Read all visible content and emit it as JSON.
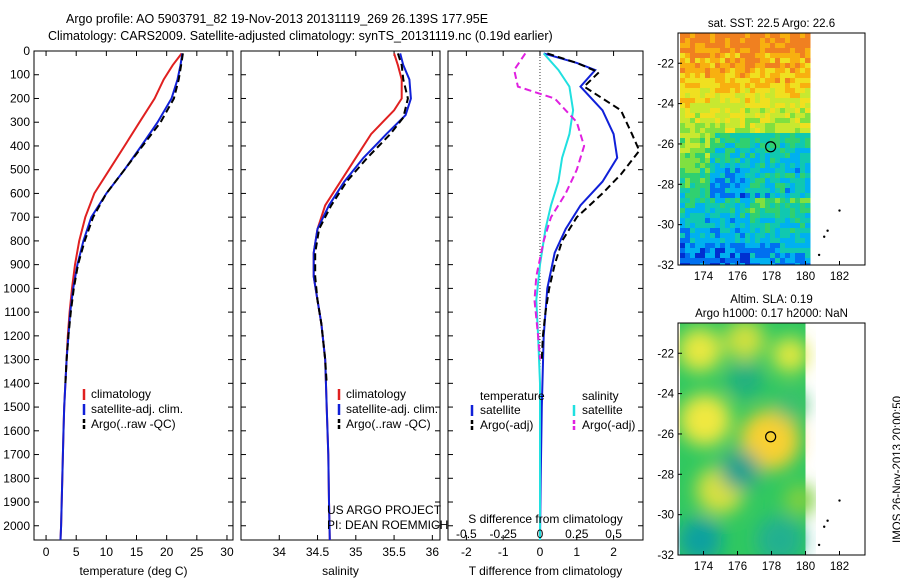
{
  "header": {
    "line1": "Argo profile: AO 5903791_82 19-Nov-2013 20131119_269 26.139S 177.95E",
    "line2": "Climatology: CARS2009. Satellite-adjusted climatology: synTS_20131119.nc (0.19d earlier)"
  },
  "colors": {
    "climatology": "#e02020",
    "satellite": "#1020d8",
    "argo": "#000000",
    "satellite_salinity": "#20e0e0",
    "argo_salinity": "#e020e0"
  },
  "chart_data": [
    {
      "type": "line",
      "name": "temperature",
      "xlabel": "temperature (deg C)",
      "ylabel": "",
      "xlim": [
        -2,
        31
      ],
      "ylim": [
        2060,
        0
      ],
      "xticks": [
        0,
        5,
        10,
        15,
        20,
        25,
        30
      ],
      "yticks": [
        0,
        100,
        200,
        300,
        400,
        500,
        600,
        700,
        800,
        900,
        1000,
        1100,
        1200,
        1300,
        1400,
        1500,
        1600,
        1700,
        1800,
        1900,
        2000
      ],
      "legend": [
        "climatology",
        "satellite-adj. clim.",
        "Argo(..raw -QC)"
      ],
      "series": [
        {
          "name": "climatology",
          "style": "solid",
          "color": "#e02020",
          "points": [
            [
              22.5,
              10
            ],
            [
              21,
              60
            ],
            [
              19.5,
              120
            ],
            [
              18,
              200
            ],
            [
              15.5,
              300
            ],
            [
              13,
              400
            ],
            [
              10.5,
              500
            ],
            [
              8,
              600
            ],
            [
              6.5,
              700
            ],
            [
              5.5,
              800
            ],
            [
              4.8,
              900
            ],
            [
              4.3,
              1000
            ],
            [
              3.9,
              1100
            ],
            [
              3.6,
              1200
            ],
            [
              3.4,
              1300
            ],
            [
              3.2,
              1400
            ],
            [
              3,
              1500
            ],
            [
              2.9,
              1600
            ],
            [
              2.8,
              1700
            ],
            [
              2.7,
              1800
            ],
            [
              2.6,
              1900
            ],
            [
              2.5,
              2000
            ],
            [
              2.4,
              2060
            ]
          ]
        },
        {
          "name": "satellite-adj. clim.",
          "style": "solid",
          "color": "#1020d8",
          "points": [
            [
              22.6,
              10
            ],
            [
              22.3,
              60
            ],
            [
              21.8,
              120
            ],
            [
              20.8,
              200
            ],
            [
              18.5,
              300
            ],
            [
              15.8,
              400
            ],
            [
              13,
              500
            ],
            [
              10,
              600
            ],
            [
              7.5,
              700
            ],
            [
              6.2,
              800
            ],
            [
              5.2,
              900
            ],
            [
              4.5,
              1000
            ],
            [
              4,
              1100
            ],
            [
              3.7,
              1200
            ],
            [
              3.4,
              1300
            ],
            [
              3.2,
              1400
            ],
            [
              3,
              1500
            ],
            [
              2.9,
              1600
            ],
            [
              2.8,
              1700
            ],
            [
              2.7,
              1800
            ],
            [
              2.6,
              1900
            ],
            [
              2.5,
              2000
            ],
            [
              2.4,
              2060
            ]
          ]
        },
        {
          "name": "Argo(..raw -QC)",
          "style": "dashed",
          "color": "#000000",
          "points": [
            [
              22.7,
              10
            ],
            [
              22.4,
              60
            ],
            [
              22,
              120
            ],
            [
              21.2,
              200
            ],
            [
              19,
              300
            ],
            [
              16,
              400
            ],
            [
              13,
              500
            ],
            [
              10,
              600
            ],
            [
              7.8,
              700
            ],
            [
              6.4,
              800
            ],
            [
              5.3,
              900
            ],
            [
              4.6,
              1000
            ],
            [
              4.1,
              1100
            ],
            [
              3.7,
              1200
            ],
            [
              3.4,
              1300
            ],
            [
              3.2,
              1400
            ]
          ]
        }
      ]
    },
    {
      "type": "line",
      "name": "salinity",
      "xlabel": "salinity",
      "ylabel": "",
      "xlim": [
        33.5,
        36.1
      ],
      "ylim": [
        2060,
        0
      ],
      "xticks": [
        34,
        34.5,
        35,
        35.5,
        36
      ],
      "legend": [
        "climatology",
        "satellite-adj. clim.",
        "Argo(..raw -QC)"
      ],
      "annotation": [
        "US ARGO PROJECT",
        "PI: DEAN ROEMMICH"
      ],
      "series": [
        {
          "name": "climatology",
          "style": "solid",
          "color": "#e02020",
          "points": [
            [
              35.5,
              10
            ],
            [
              35.55,
              60
            ],
            [
              35.6,
              120
            ],
            [
              35.6,
              200
            ],
            [
              35.5,
              250
            ],
            [
              35.2,
              350
            ],
            [
              35,
              450
            ],
            [
              34.8,
              550
            ],
            [
              34.6,
              650
            ],
            [
              34.5,
              750
            ],
            [
              34.45,
              850
            ],
            [
              34.45,
              950
            ],
            [
              34.5,
              1050
            ],
            [
              34.55,
              1150
            ],
            [
              34.6,
              1300
            ],
            [
              34.62,
              1500
            ],
            [
              34.64,
              1700
            ],
            [
              34.65,
              1900
            ],
            [
              34.66,
              2060
            ]
          ]
        },
        {
          "name": "satellite-adj. clim.",
          "style": "solid",
          "color": "#1020d8",
          "points": [
            [
              35.58,
              10
            ],
            [
              35.62,
              60
            ],
            [
              35.7,
              120
            ],
            [
              35.72,
              200
            ],
            [
              35.65,
              270
            ],
            [
              35.4,
              350
            ],
            [
              35.1,
              450
            ],
            [
              34.85,
              550
            ],
            [
              34.65,
              650
            ],
            [
              34.5,
              750
            ],
            [
              34.45,
              850
            ],
            [
              34.45,
              950
            ],
            [
              34.5,
              1050
            ],
            [
              34.55,
              1150
            ],
            [
              34.6,
              1300
            ],
            [
              34.62,
              1500
            ],
            [
              34.64,
              1700
            ],
            [
              34.65,
              1900
            ],
            [
              34.66,
              2060
            ]
          ]
        },
        {
          "name": "Argo(..raw -QC)",
          "style": "dashed",
          "color": "#000000",
          "points": [
            [
              35.55,
              10
            ],
            [
              35.6,
              60
            ],
            [
              35.62,
              120
            ],
            [
              35.68,
              200
            ],
            [
              35.62,
              280
            ],
            [
              35.45,
              350
            ],
            [
              35.15,
              450
            ],
            [
              34.88,
              550
            ],
            [
              34.68,
              650
            ],
            [
              34.52,
              750
            ],
            [
              34.47,
              850
            ],
            [
              34.47,
              950
            ],
            [
              34.5,
              1050
            ],
            [
              34.55,
              1150
            ],
            [
              34.6,
              1300
            ],
            [
              34.62,
              1400
            ]
          ]
        }
      ]
    },
    {
      "type": "line",
      "name": "differences",
      "xlabel": "T difference from climatology",
      "xlabel2": "S difference from climatology",
      "xlim": [
        -2.5,
        2.8
      ],
      "ylim": [
        2060,
        0
      ],
      "xticks": [
        -2,
        -1,
        0,
        1,
        2
      ],
      "xticks_s": [
        -0.5,
        -0.25,
        0,
        0.25,
        0.5
      ],
      "legend_headers": [
        "temperature",
        "salinity"
      ],
      "legend": [
        "satellite",
        "Argo(-adj)",
        "satellite",
        "Argo(-adj)"
      ],
      "series": [
        {
          "name": "satellite",
          "group": "temperature",
          "style": "solid",
          "color": "#1020d8",
          "points": [
            [
              0.1,
              10
            ],
            [
              1,
              50
            ],
            [
              1.5,
              80
            ],
            [
              1.1,
              150
            ],
            [
              1.7,
              250
            ],
            [
              2,
              350
            ],
            [
              2.1,
              450
            ],
            [
              1.7,
              550
            ],
            [
              1.1,
              650
            ],
            [
              0.7,
              750
            ],
            [
              0.4,
              850
            ],
            [
              0.2,
              1000
            ],
            [
              0.1,
              1200
            ],
            [
              0.05,
              1500
            ],
            [
              0.02,
              1800
            ],
            [
              0,
              2060
            ]
          ]
        },
        {
          "name": "Argo(-adj)",
          "group": "temperature",
          "style": "dashed",
          "color": "#000000",
          "points": [
            [
              0.2,
              10
            ],
            [
              1,
              50
            ],
            [
              1.6,
              90
            ],
            [
              1.2,
              150
            ],
            [
              2.2,
              250
            ],
            [
              2.5,
              350
            ],
            [
              2.7,
              420
            ],
            [
              2.2,
              520
            ],
            [
              1.7,
              600
            ],
            [
              1,
              700
            ],
            [
              0.6,
              800
            ],
            [
              0.4,
              900
            ],
            [
              0.25,
              1000
            ],
            [
              0.15,
              1100
            ],
            [
              0.08,
              1200
            ],
            [
              0.05,
              1300
            ]
          ]
        },
        {
          "name": "satellite",
          "group": "salinity",
          "style": "solid",
          "color": "#20e0e0",
          "points": [
            [
              0.1,
              10
            ],
            [
              0.5,
              80
            ],
            [
              0.8,
              150
            ],
            [
              0.9,
              250
            ],
            [
              0.8,
              350
            ],
            [
              0.6,
              450
            ],
            [
              0.5,
              550
            ],
            [
              0.3,
              650
            ],
            [
              0.15,
              750
            ],
            [
              0,
              900
            ],
            [
              -0.1,
              1050
            ],
            [
              -0.05,
              1200
            ],
            [
              0,
              1400
            ],
            [
              0,
              2060
            ]
          ]
        },
        {
          "name": "Argo(-adj)",
          "group": "salinity",
          "style": "dashed",
          "color": "#e020e0",
          "points": [
            [
              -0.4,
              10
            ],
            [
              -0.7,
              80
            ],
            [
              -0.6,
              150
            ],
            [
              0.4,
              200
            ],
            [
              1,
              300
            ],
            [
              1.2,
              400
            ],
            [
              1,
              500
            ],
            [
              0.7,
              600
            ],
            [
              0.3,
              700
            ],
            [
              0.1,
              800
            ],
            [
              -0.1,
              950
            ],
            [
              -0.15,
              1050
            ],
            [
              -0.05,
              1200
            ],
            [
              0,
              1300
            ]
          ]
        }
      ]
    },
    {
      "type": "heatmap",
      "name": "sst-map",
      "title": "sat. SST: 22.5 Argo: 22.6",
      "xticks": [
        174,
        176,
        178,
        180,
        182
      ],
      "yticks": [
        -22,
        -24,
        -26,
        -28,
        -30,
        -32
      ],
      "xlim": [
        172.5,
        183.5
      ],
      "ylim": [
        -32,
        -20.5
      ],
      "marker": {
        "lon": 177.95,
        "lat": -26.139
      }
    },
    {
      "type": "heatmap",
      "name": "sla-map",
      "title": "Altim. SLA: 0.19",
      "subtitle": "Argo h1000: 0.17 h2000: NaN",
      "xticks": [
        174,
        176,
        178,
        180,
        182
      ],
      "yticks": [
        -22,
        -24,
        -26,
        -28,
        -30,
        -32
      ],
      "xlim": [
        172.5,
        183.5
      ],
      "ylim": [
        -32,
        -20.5
      ],
      "marker": {
        "lon": 177.95,
        "lat": -26.139
      }
    }
  ],
  "footer": {
    "side_label": "IMOS 26-Nov-2013 20:00:50"
  }
}
